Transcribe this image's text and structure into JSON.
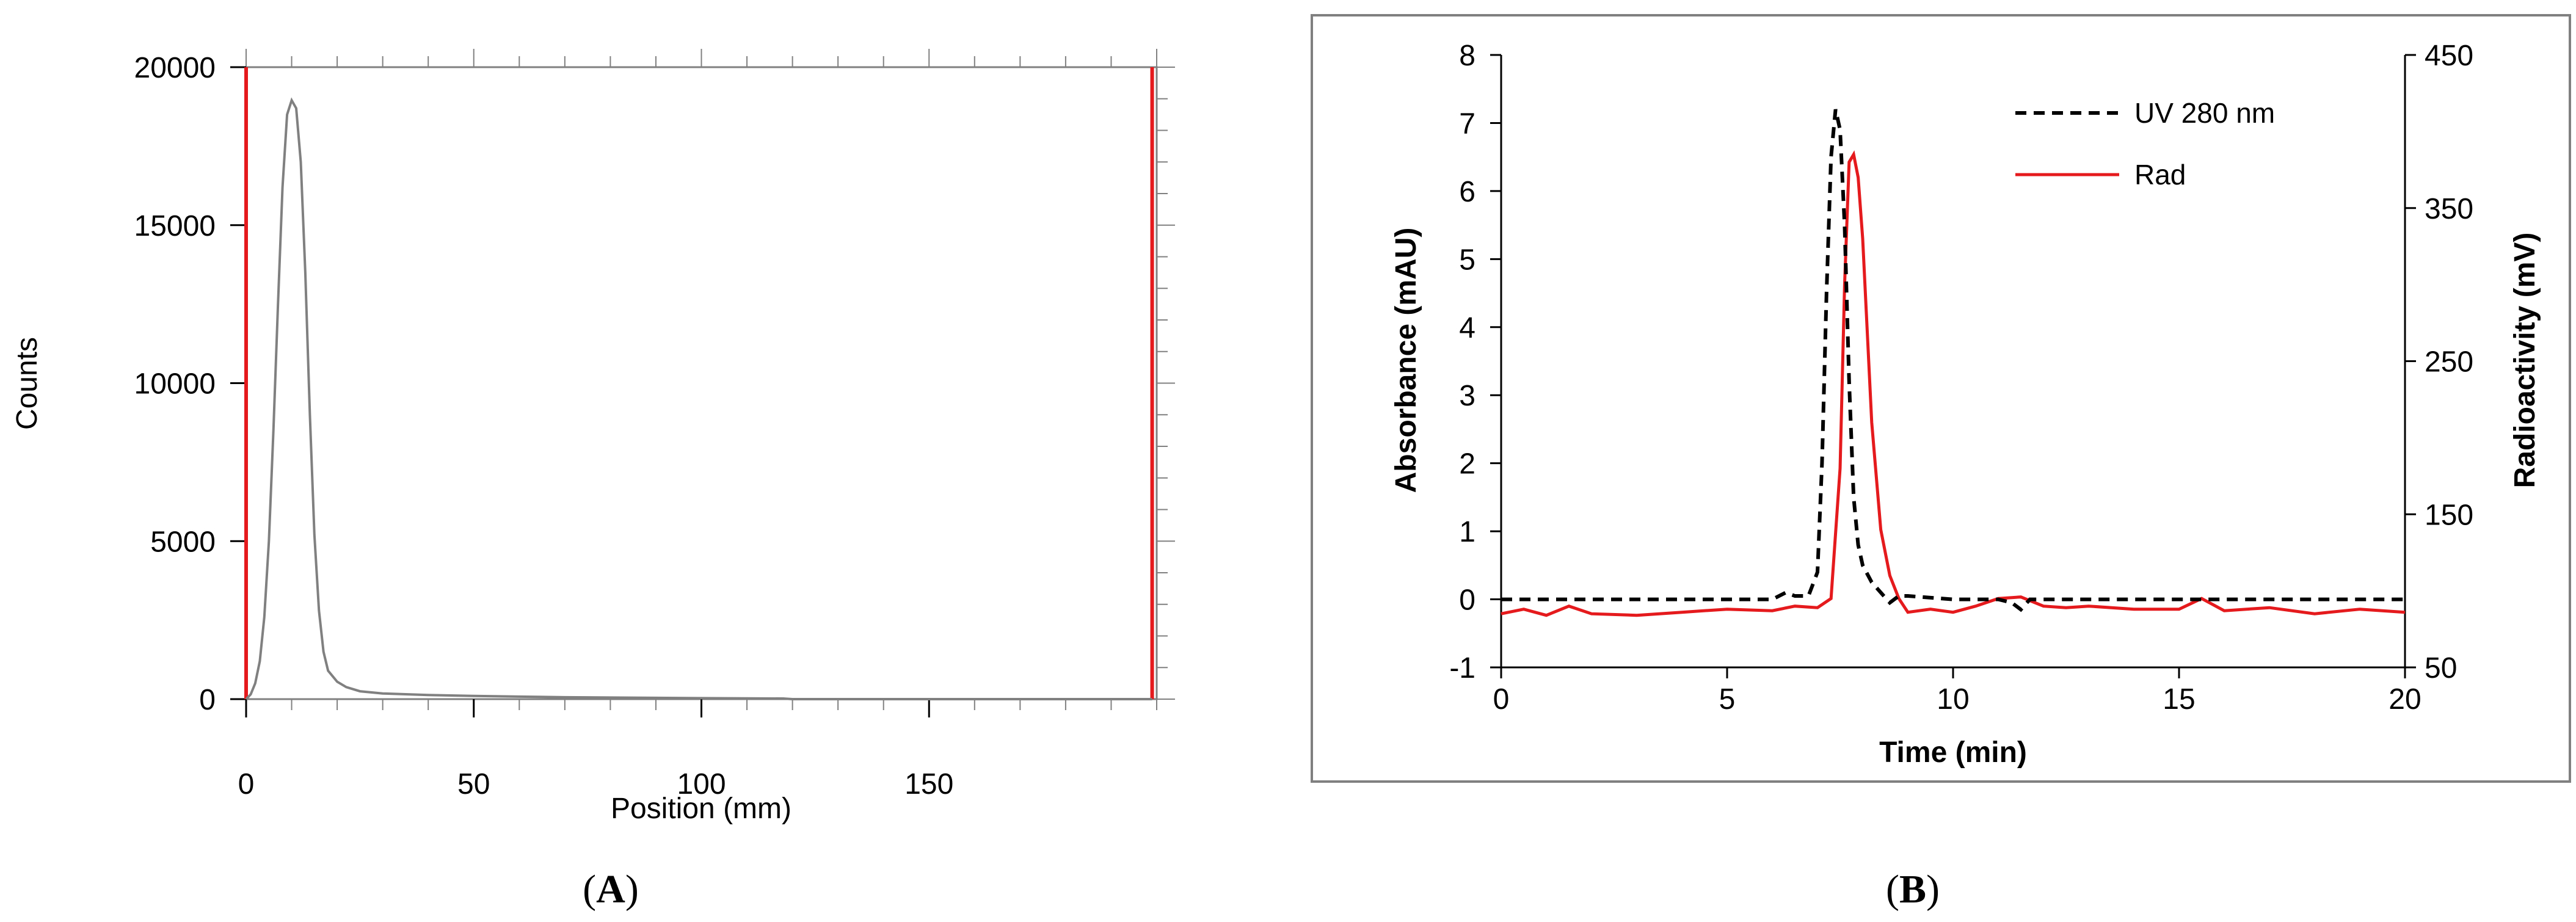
{
  "panel_labels": {
    "a_open": "(",
    "a_letter": "A",
    "a_close": ")",
    "b_open": "(",
    "b_letter": "B",
    "b_close": ")"
  },
  "colors": {
    "red": "#e41a1c",
    "trace_a": "#808080",
    "uv": "#000000",
    "axis": "#000000",
    "frame_b": "#808080"
  },
  "chart_data": [
    {
      "type": "line",
      "xlabel": "Position (mm)",
      "ylabel": "Counts",
      "xlim": [
        0,
        200
      ],
      "ylim": [
        0,
        20000
      ],
      "x_ticks": [
        "0",
        "50",
        "100",
        "150"
      ],
      "y_ticks": [
        "0",
        "5000",
        "10000",
        "15000",
        "20000"
      ],
      "grid": false,
      "markers": [
        0,
        199
      ],
      "series": [
        {
          "x": [
            0,
            1,
            2,
            3,
            4,
            5,
            6,
            7,
            8,
            9,
            10,
            11,
            12,
            13,
            14,
            15,
            16,
            17,
            18,
            20,
            22,
            25,
            30,
            40,
            50,
            60,
            70,
            80,
            90,
            100,
            110,
            118,
            120,
            150,
            199
          ],
          "y": [
            0,
            150,
            500,
            1200,
            2600,
            5000,
            8500,
            12500,
            16200,
            18500,
            18950,
            18700,
            17000,
            13500,
            9000,
            5200,
            2800,
            1500,
            900,
            550,
            380,
            250,
            180,
            130,
            100,
            80,
            60,
            50,
            40,
            30,
            25,
            20,
            0,
            0,
            0
          ]
        }
      ]
    },
    {
      "type": "line",
      "xlabel": "Time (min)",
      "ylabel": "Absorbance (mAU)",
      "y2label": "Radioactivity (mV)",
      "xlim": [
        0,
        20
      ],
      "ylim": [
        -1,
        8
      ],
      "y2lim": [
        50,
        450
      ],
      "x_ticks": [
        "0",
        "5",
        "10",
        "15",
        "20"
      ],
      "y_ticks": [
        "-1",
        "0",
        "1",
        "2",
        "3",
        "4",
        "5",
        "6",
        "7",
        "8"
      ],
      "y2_ticks": [
        "50",
        "150",
        "250",
        "350",
        "450"
      ],
      "grid": false,
      "legend": "top-right",
      "series": [
        {
          "name": "UV 280 nm",
          "axis": "left",
          "style": "dashed",
          "x": [
            0,
            5,
            6,
            6.3,
            6.5,
            6.8,
            7.0,
            7.1,
            7.2,
            7.3,
            7.4,
            7.5,
            7.6,
            7.7,
            7.8,
            7.9,
            8.0,
            8.2,
            8.4,
            8.6,
            8.8,
            9.0,
            10,
            11,
            11.3,
            11.5,
            11.7,
            12,
            15,
            20
          ],
          "y": [
            0,
            0,
            0,
            0.1,
            0.05,
            0.05,
            0.4,
            2.0,
            4.5,
            6.5,
            7.2,
            6.9,
            5.5,
            3.2,
            1.5,
            0.8,
            0.5,
            0.25,
            0.1,
            -0.05,
            0.05,
            0.05,
            0,
            0,
            -0.05,
            -0.15,
            0,
            0,
            0,
            0
          ]
        },
        {
          "name": "Rad",
          "axis": "right",
          "style": "solid",
          "x": [
            0,
            0.5,
            1,
            1.5,
            2,
            3,
            4,
            5,
            6,
            6.5,
            7,
            7.3,
            7.5,
            7.6,
            7.7,
            7.8,
            7.9,
            8.0,
            8.1,
            8.2,
            8.4,
            8.6,
            8.8,
            9.0,
            9.5,
            10,
            10.5,
            11,
            11.5,
            12,
            12.5,
            13,
            14,
            15,
            15.5,
            16,
            17,
            18,
            19,
            20
          ],
          "y": [
            85,
            88,
            84,
            90,
            85,
            84,
            86,
            88,
            87,
            90,
            89,
            95,
            180,
            300,
            380,
            385,
            370,
            330,
            270,
            210,
            140,
            110,
            95,
            86,
            88,
            86,
            90,
            95,
            96,
            90,
            89,
            90,
            88,
            88,
            95,
            87,
            89,
            85,
            88,
            86
          ]
        }
      ]
    }
  ]
}
